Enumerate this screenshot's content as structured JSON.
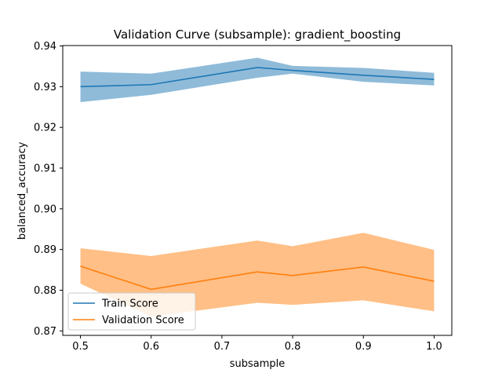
{
  "chart_data": {
    "type": "line",
    "title": "Validation Curve (subsample): gradient_boosting",
    "xlabel": "subsample",
    "ylabel": "balanced_accuracy",
    "x": [
      0.5,
      0.6,
      0.75,
      0.8,
      0.9,
      1.0
    ],
    "xlim": [
      0.475,
      1.025
    ],
    "ylim": [
      0.8689,
      0.9401
    ],
    "xticks": [
      0.5,
      0.6,
      0.7,
      0.8,
      0.9,
      1.0
    ],
    "xtick_labels": [
      "0.5",
      "0.6",
      "0.7",
      "0.8",
      "0.9",
      "1.0"
    ],
    "yticks": [
      0.87,
      0.88,
      0.89,
      0.9,
      0.91,
      0.92,
      0.93,
      0.94
    ],
    "ytick_labels": [
      "0.87",
      "0.88",
      "0.89",
      "0.90",
      "0.91",
      "0.92",
      "0.93",
      "0.94"
    ],
    "grid": false,
    "legend_position": "lower-left",
    "series": [
      {
        "name": "Train Score",
        "color": "#1f77b4",
        "band_color": "#1f77b4",
        "values": [
          0.93,
          0.9305,
          0.9347,
          0.934,
          0.9328,
          0.9318
        ],
        "lower": [
          0.9262,
          0.928,
          0.9322,
          0.9332,
          0.9312,
          0.9303
        ],
        "upper": [
          0.9337,
          0.9332,
          0.9371,
          0.9351,
          0.9346,
          0.9334
        ]
      },
      {
        "name": "Validation Score",
        "color": "#ff7f0e",
        "band_color": "#ff7f0e",
        "values": [
          0.8859,
          0.8802,
          0.8845,
          0.8836,
          0.8857,
          0.8822
        ],
        "lower": [
          0.8816,
          0.8735,
          0.8769,
          0.8764,
          0.8775,
          0.8748
        ],
        "upper": [
          0.8903,
          0.8884,
          0.8922,
          0.8908,
          0.8941,
          0.8899
        ]
      }
    ]
  }
}
